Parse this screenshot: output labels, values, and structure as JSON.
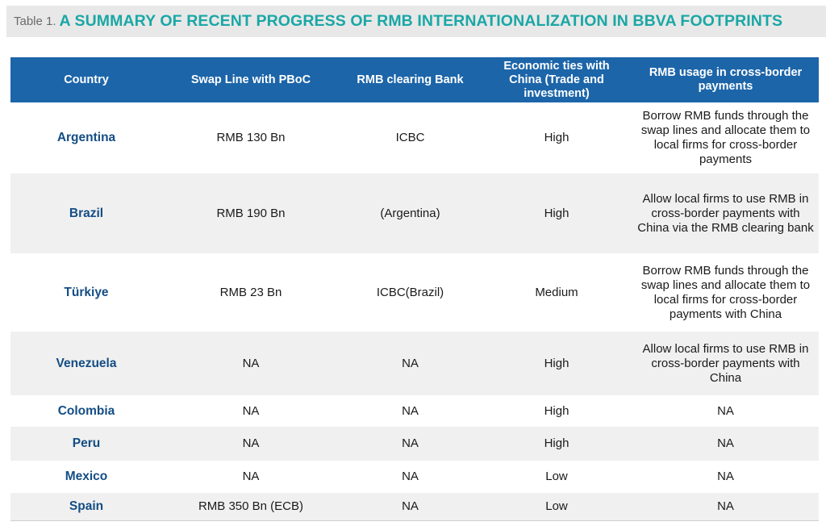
{
  "title": {
    "prefix": "Table 1.",
    "main": "A SUMMARY OF RECENT PROGRESS OF RMB INTERNATIONALIZATION IN BBVA FOOTPRINTS"
  },
  "table": {
    "headers": [
      "Country",
      "Swap Line with PBoC",
      "RMB clearing Bank",
      "Economic ties with China (Trade and investment)",
      "RMB usage in cross-border payments"
    ],
    "rows": [
      [
        "Argentina",
        "RMB 130 Bn",
        "ICBC",
        "High",
        "Borrow RMB funds through the swap lines and allocate them to local firms for cross-border payments"
      ],
      [
        "Brazil",
        "RMB 190 Bn",
        "(Argentina)",
        "High",
        "Allow local firms to use RMB in cross-border payments with China via the RMB clearing bank"
      ],
      [
        "Türkiye",
        "RMB 23 Bn",
        "ICBC(Brazil)",
        "Medium",
        "Borrow RMB funds through the swap lines and allocate them to local firms for cross-border payments with China"
      ],
      [
        "Venezuela",
        "NA",
        "NA",
        "High",
        "Allow local firms to use RMB in cross-border payments with China"
      ],
      [
        "Colombia",
        "NA",
        "NA",
        "High",
        "NA"
      ],
      [
        "Peru",
        "NA",
        "NA",
        "High",
        "NA"
      ],
      [
        "Mexico",
        "NA",
        "NA",
        "Low",
        "NA"
      ],
      [
        "Spain",
        "RMB 350 Bn (ECB)",
        "NA",
        "Low",
        "NA"
      ]
    ]
  }
}
